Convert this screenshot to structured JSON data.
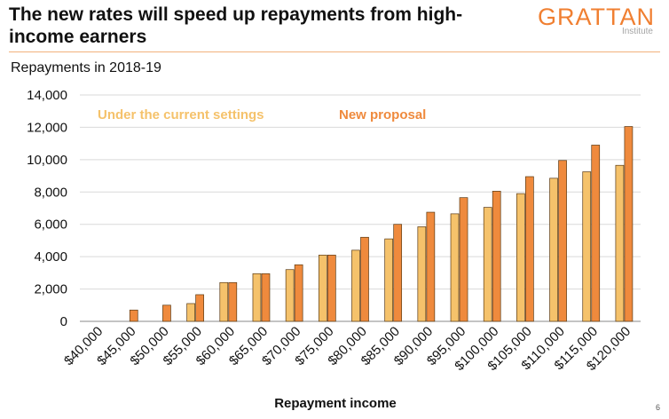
{
  "header": {
    "title": "The new rates will speed up repayments from high-income earners",
    "logo_text": "GRATTAN",
    "logo_sub": "Institute",
    "page_number": "6"
  },
  "colors": {
    "current": "#f5c26b",
    "proposal": "#ef8a3d",
    "bar_stroke": "#5a3a14",
    "gridline": "#d9d9d9",
    "accent": "#f07f31"
  },
  "chart_data": {
    "type": "bar",
    "subtitle": "Repayments in 2018-19",
    "xlabel": "Repayment income",
    "ylabel": "",
    "ylim": [
      0,
      14000
    ],
    "yticks": [
      0,
      2000,
      4000,
      6000,
      8000,
      10000,
      12000,
      14000
    ],
    "ytick_labels": [
      "0",
      "2,000",
      "4,000",
      "6,000",
      "8,000",
      "10,000",
      "12,000",
      "14,000"
    ],
    "grid": true,
    "legend": "top-left, inside plot",
    "categories": [
      "$40,000",
      "$45,000",
      "$50,000",
      "$55,000",
      "$60,000",
      "$65,000",
      "$70,000",
      "$75,000",
      "$80,000",
      "$85,000",
      "$90,000",
      "$95,000",
      "$100,000",
      "$105,000",
      "$110,000",
      "$115,000",
      "$120,000"
    ],
    "series": [
      {
        "name": "Under the current settings",
        "values": [
          0,
          0,
          0,
          1100,
          2400,
          2950,
          3200,
          4100,
          4400,
          5100,
          5850,
          6650,
          7050,
          7900,
          8850,
          9250,
          9650
        ]
      },
      {
        "name": "New proposal",
        "values": [
          0,
          700,
          1000,
          1650,
          2400,
          2950,
          3500,
          4100,
          5200,
          6000,
          6750,
          7650,
          8050,
          8950,
          9950,
          10900,
          12050
        ]
      }
    ]
  }
}
